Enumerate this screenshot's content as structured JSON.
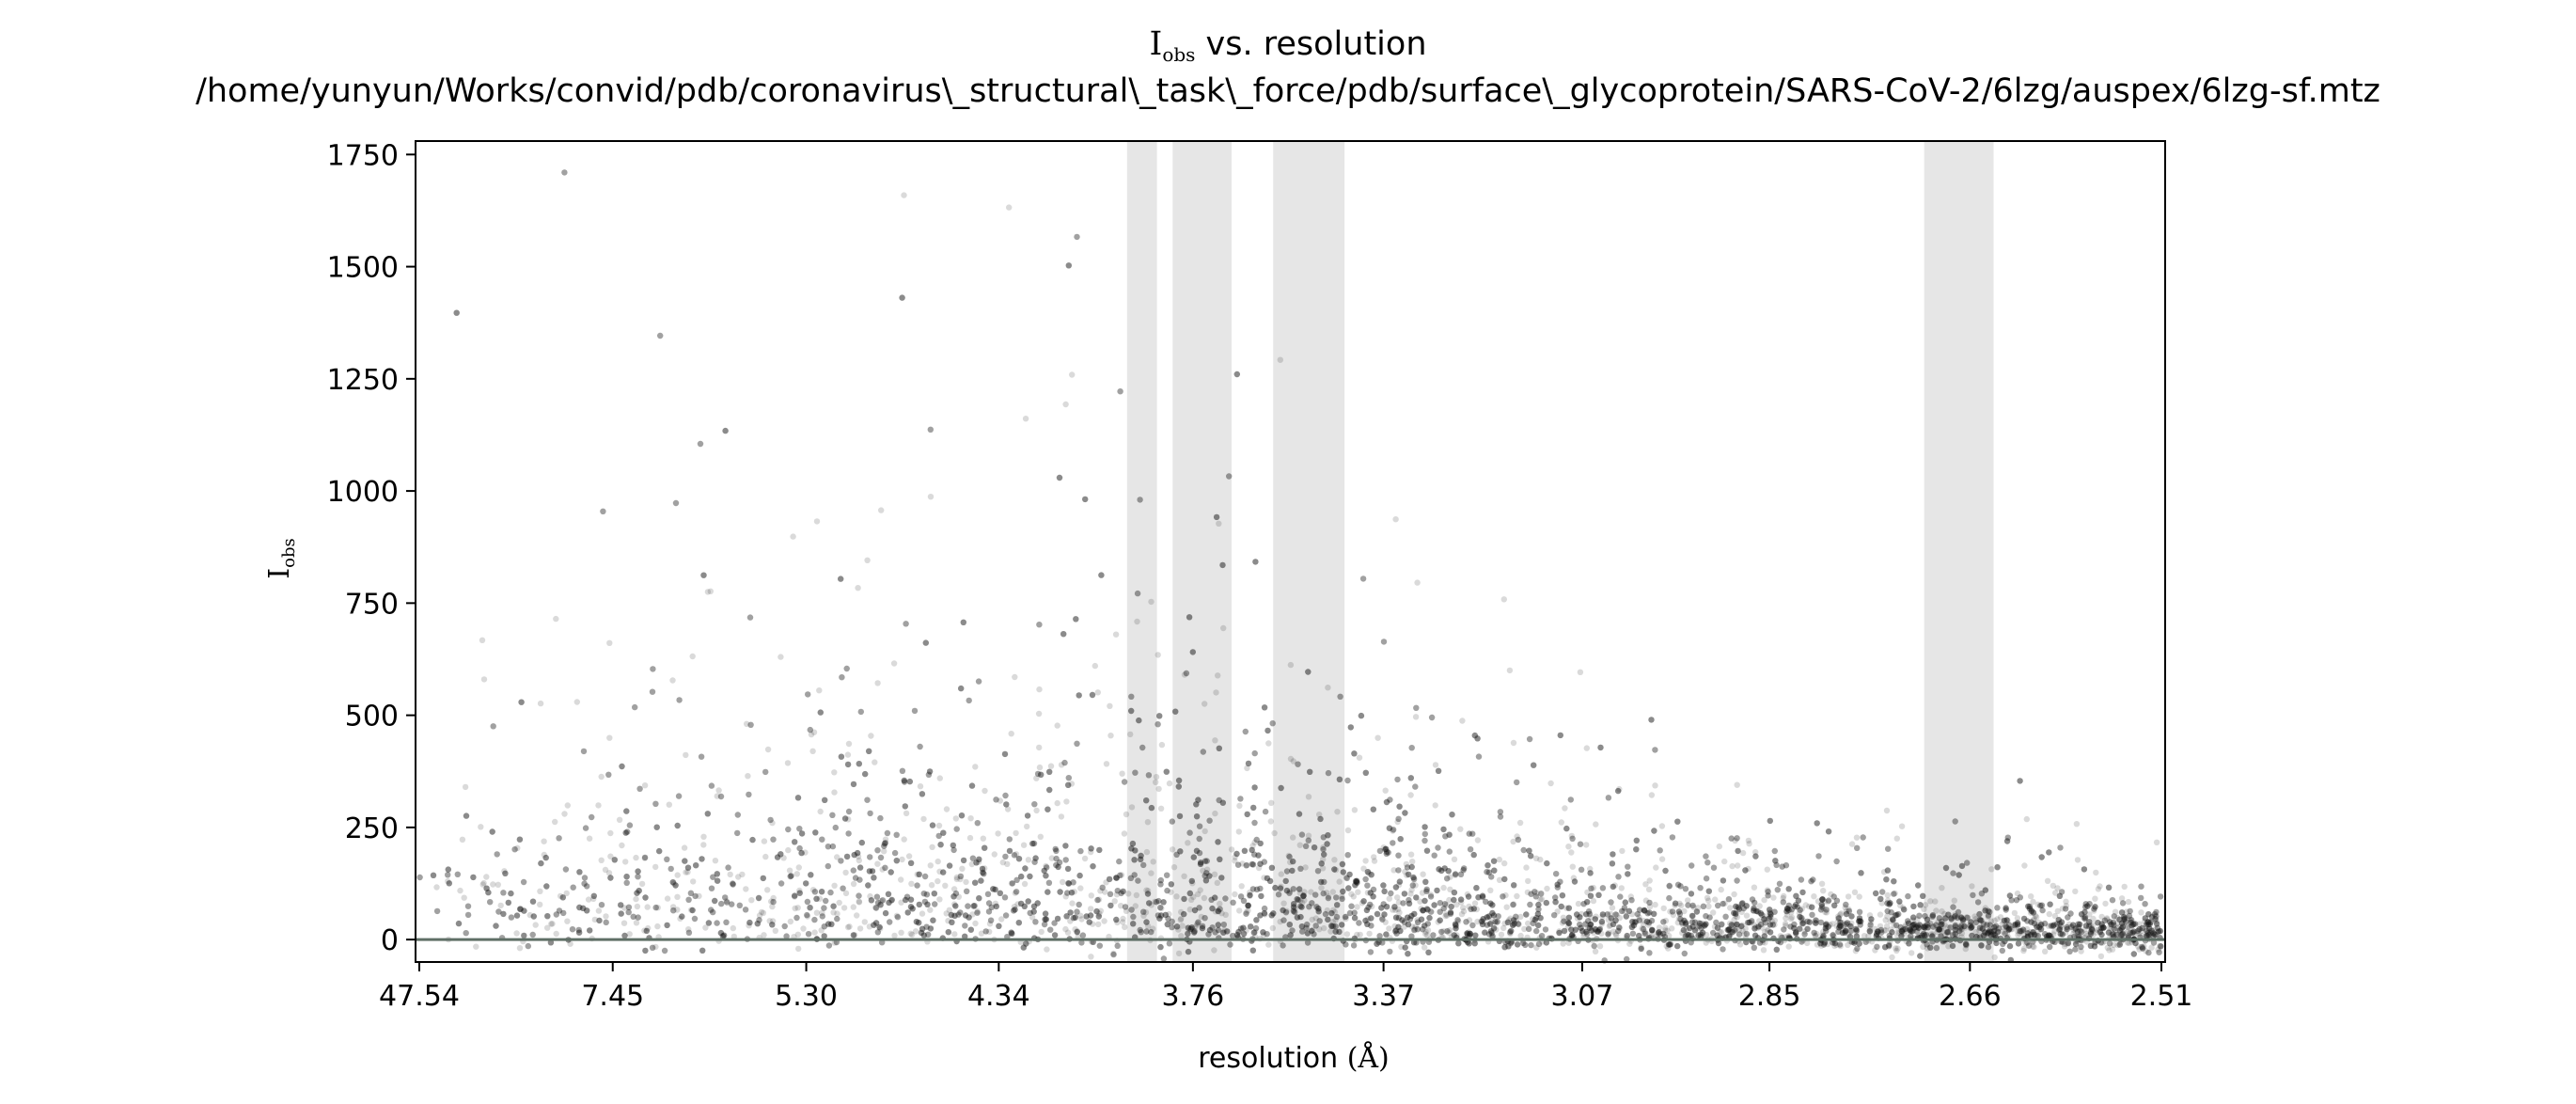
{
  "chart_data": {
    "type": "scatter",
    "title": {
      "symbol": "I",
      "subscript": "obs",
      "rest": " vs. resolution"
    },
    "subtitle": "/home/yunyun/Works/convid/pdb/coronavirus\\_structural\\_task\\_force/pdb/surface\\_glycoprotein/SARS-CoV-2/6lzg/auspex/6lzg-sf.mtz",
    "xlabel": {
      "text": "resolution ",
      "unit": "(Å)"
    },
    "ylabel": {
      "symbol": "I",
      "subscript": "obs"
    },
    "x_scale": "1/d^2",
    "x_ticks": [
      "47.54",
      "7.45",
      "5.30",
      "4.34",
      "3.76",
      "3.37",
      "3.07",
      "2.85",
      "2.66",
      "2.51"
    ],
    "xlim_resolution": [
      47.54,
      2.51
    ],
    "y_ticks": [
      "0",
      "250",
      "500",
      "750",
      "1000",
      "1250",
      "1500",
      "1750"
    ],
    "ylim": [
      -50,
      1780
    ],
    "ice_ring_bands_resolution": [
      [
        3.93,
        3.85
      ],
      [
        3.81,
        3.67
      ],
      [
        3.58,
        3.44
      ],
      [
        2.7,
        2.64
      ]
    ],
    "point_color": "#1a1a1a",
    "point_alpha": 0.16,
    "band_color": "#e6e6e6",
    "zero_line_color": "#5f6f66",
    "grid": false,
    "legend": "none"
  }
}
